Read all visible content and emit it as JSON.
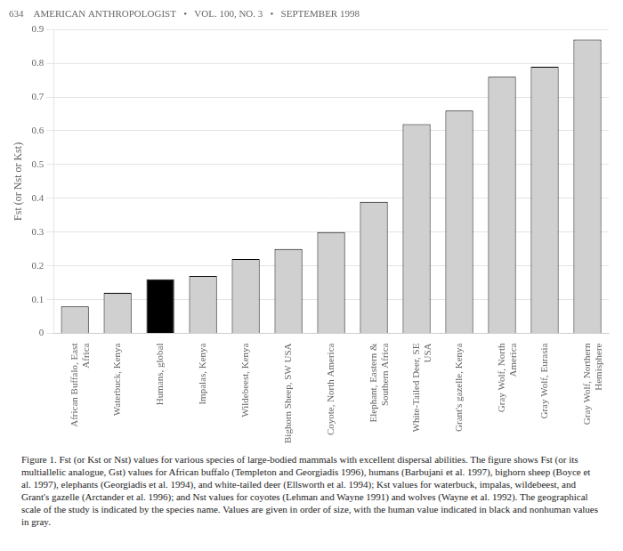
{
  "chart_data": {
    "type": "bar",
    "title": "634    AMERICAN ANTHROPOLOGIST   •   VOL. 100, NO. 3   •   SEPTEMBER 1998",
    "annotations": [
      "Figure 1. Fst (or Kst or Nst) values for various species of large-bodied mammals with excellent dispersal abilities. The figure shows Fst (or its multiallelic analogue, Gst) values for African buffalo (Templeton and Georgiadis 1996), humans (Barbujani et al. 1997), bighorn sheep (Boyce et al. 1997), elephants (Georgiadis et al. 1994), and white-tailed deer (Ellsworth et al. 1994); Kst values for waterbuck, impalas, wildebeest, and Grant's gazelle (Arctander et al. 1996); and Nst values for coyotes (Lehman and Wayne 1991) and wolves (Wayne et al. 1992). The geographical scale of the study is indicated by the species name. Values are given in order of size, with the human value indicated in black and nonhuman values in gray."
    ],
    "ylabel": "Fst (or Nst or Kst)",
    "categories": [
      "African Buffalo, East\nAfrica",
      "Waterbuck, Kenya",
      "Humans, global",
      "Impalas, Kenya",
      "Wildebeest, Kenya",
      "Bighorn Sheep, SW USA",
      "Coyote, North America",
      "Elephant, Eastern &\nSouthern Africa",
      "White-Tailed Deer, SE\nUSA",
      "Grant's gazelle, Kenya",
      "Gray Wolf, North\nAmerica",
      "Gray Wolf, Eurasia",
      "Gray Wolf, Northern\nHemisphere"
    ],
    "values": [
      0.08,
      0.12,
      0.16,
      0.17,
      0.22,
      0.25,
      0.3,
      0.39,
      0.62,
      0.66,
      0.76,
      0.79,
      0.87
    ],
    "colors": [
      "#d0d0d0",
      "#d0d0d0",
      "#000000",
      "#d0d0d0",
      "#d0d0d0",
      "#d0d0d0",
      "#d0d0d0",
      "#d0d0d0",
      "#d0d0d0",
      "#d0d0d0",
      "#d0d0d0",
      "#d0d0d0",
      "#d0d0d0"
    ],
    "ylim": [
      0,
      0.9
    ],
    "yticks": [
      0,
      0.1,
      0.2,
      0.3,
      0.4,
      0.5,
      0.6,
      0.7,
      0.8,
      0.9
    ],
    "grid": true
  }
}
